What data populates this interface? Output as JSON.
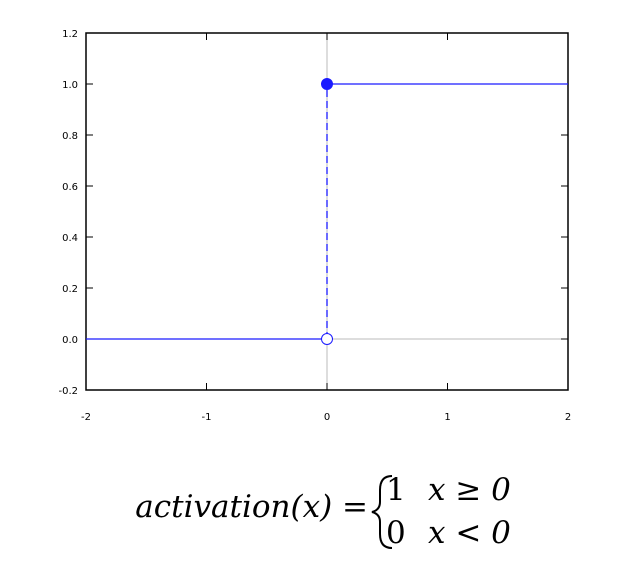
{
  "chart_data": {
    "type": "line",
    "x": [
      -2,
      0,
      0,
      2
    ],
    "series": [
      {
        "color": "#1a1aff",
        "values": [
          0,
          0,
          null,
          null
        ]
      },
      {
        "color": "#1a1aff",
        "values": [
          null,
          null,
          1,
          1
        ]
      },
      {
        "color": "#1a1aff",
        "dashed": true,
        "values": [
          null,
          0,
          1,
          null
        ]
      }
    ],
    "points": [
      {
        "x": 0,
        "y": 1,
        "filled": true,
        "color": "#1a1aff"
      },
      {
        "x": 0,
        "y": 0,
        "filled": false,
        "color": "#1a1aff"
      }
    ],
    "xlim": [
      -2,
      2
    ],
    "xticks": [
      -2,
      -1,
      0,
      1,
      2
    ],
    "ylim": [
      -0.2,
      1.2
    ],
    "yticks": [
      {
        "value": -0.2,
        "label": "-0.2"
      },
      {
        "value": 0,
        "label": "0.0"
      },
      {
        "value": 0.2,
        "label": "0.2"
      },
      {
        "value": 0.4,
        "label": "0.4"
      },
      {
        "value": 0.6,
        "label": "0.6"
      },
      {
        "value": 0.8,
        "label": "0.8"
      },
      {
        "value": 1,
        "label": "1.0"
      },
      {
        "value": 1.2,
        "label": "1.2"
      }
    ],
    "zero_lines": true
  },
  "formula": {
    "lhs": "activation(x) =",
    "cases": [
      {
        "value": "1",
        "condition": "x ≥ 0"
      },
      {
        "value": "0",
        "condition": "x < 0"
      }
    ]
  }
}
